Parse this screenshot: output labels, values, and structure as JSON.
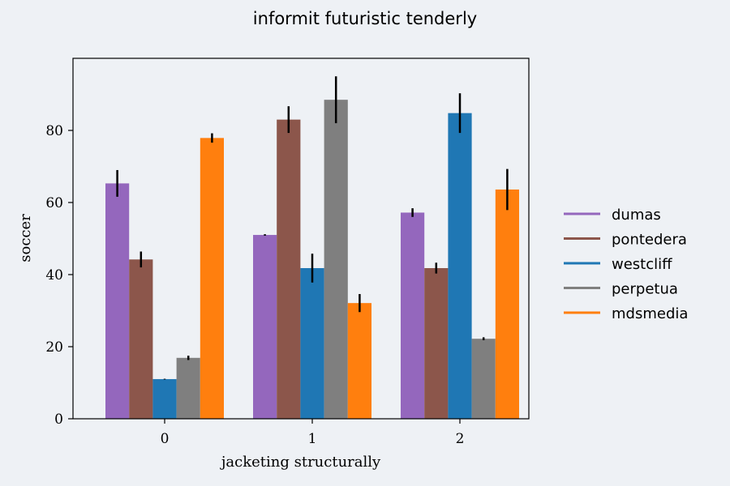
{
  "chart_data": {
    "type": "bar",
    "title": "informit futuristic tenderly",
    "xlabel": "jacketing structurally",
    "ylabel": "soccer",
    "categories": [
      "0",
      "1",
      "2"
    ],
    "ylim": [
      0,
      100
    ],
    "yticks": [
      "0",
      "20",
      "40",
      "60",
      "80"
    ],
    "grid": false,
    "legend_position": "right",
    "series": [
      {
        "name": "dumas",
        "color": "#9467bd",
        "values": [
          65.3,
          51.0,
          57.2
        ],
        "errors": [
          3.7,
          0.2,
          1.2
        ]
      },
      {
        "name": "pontedera",
        "color": "#8c564b",
        "values": [
          44.2,
          83.0,
          41.8
        ],
        "errors": [
          2.2,
          3.7,
          1.5
        ]
      },
      {
        "name": "westcliff",
        "color": "#1f77b4",
        "values": [
          11.0,
          41.8,
          84.8
        ],
        "errors": [
          0.1,
          4.0,
          5.5
        ]
      },
      {
        "name": "perpetua",
        "color": "#7f7f7f",
        "values": [
          16.9,
          88.5,
          22.2
        ],
        "errors": [
          0.6,
          6.5,
          0.4
        ]
      },
      {
        "name": "mdsmedia",
        "color": "#ff7f0e",
        "values": [
          77.9,
          32.1,
          63.6
        ],
        "errors": [
          1.3,
          2.5,
          5.7
        ]
      }
    ]
  }
}
